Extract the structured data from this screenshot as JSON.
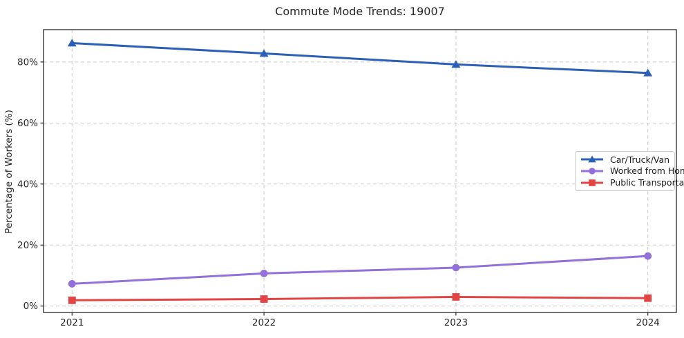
{
  "figure": {
    "title": "Commute Mode Trends: 19007"
  },
  "chart_data": {
    "type": "line",
    "title": "Commute Mode Trends: 19007",
    "xlabel": "",
    "ylabel": "Percentage of Workers (%)",
    "categories": [
      2021,
      2022,
      2023,
      2024
    ],
    "x_tick_labels": [
      "2021",
      "2022",
      "2023",
      "2024"
    ],
    "y_tick_values": [
      0,
      20,
      40,
      60,
      80
    ],
    "y_tick_labels": [
      "0%",
      "20%",
      "40%",
      "60%",
      "80%"
    ],
    "ylim": [
      -2.1,
      90.6
    ],
    "grid": true,
    "grid_style": "dashed",
    "legend_position": "center right",
    "series": [
      {
        "name": "Car/Truck/Van",
        "marker": "triangle",
        "color": "#2b5fb8",
        "values": [
          86.2,
          82.8,
          79.2,
          76.4
        ]
      },
      {
        "name": "Worked from Home",
        "marker": "circle",
        "color": "#9370db",
        "values": [
          7.3,
          10.7,
          12.6,
          16.4
        ]
      },
      {
        "name": "Public Transportation",
        "marker": "square",
        "color": "#e24444",
        "values": [
          1.9,
          2.3,
          3.0,
          2.6
        ]
      }
    ]
  }
}
